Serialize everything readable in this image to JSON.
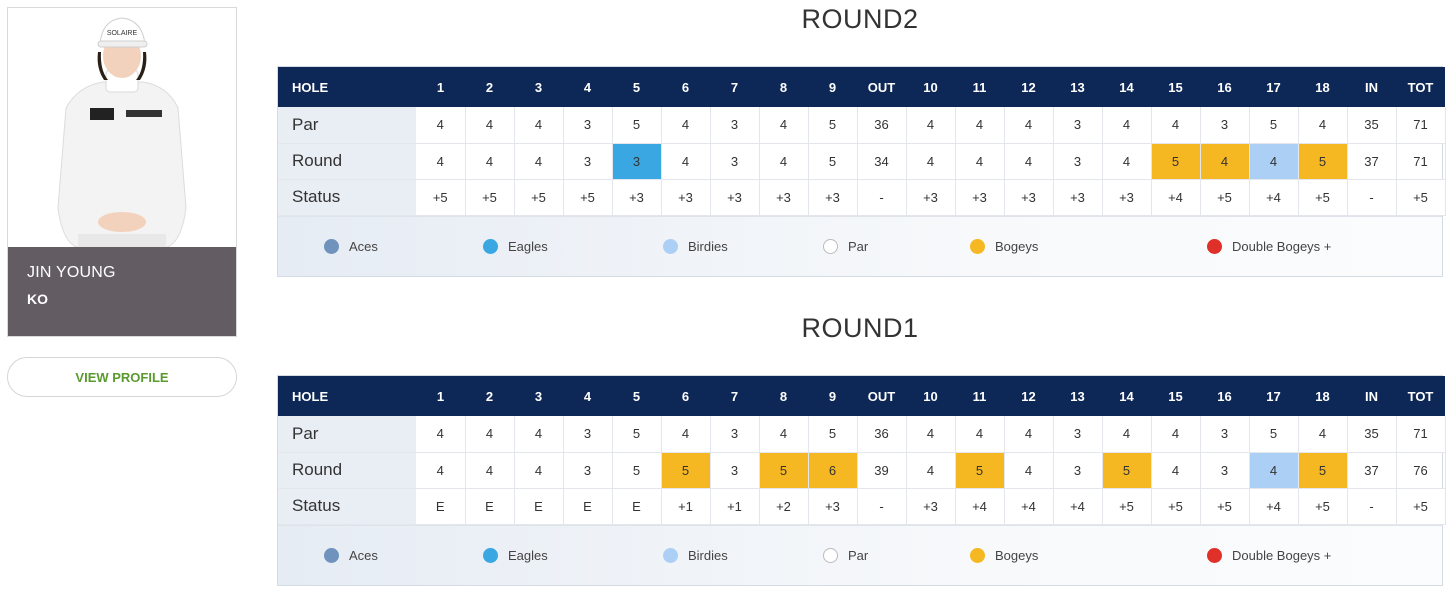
{
  "player": {
    "first_name": "JIN YOUNG",
    "last_name": "KO",
    "photo_caps_text": "SOLAIRE",
    "view_profile_label": "VIEW PROFILE"
  },
  "colors": {
    "header_bg": "#0d2756",
    "aces": "#6f93bd",
    "eagles": "#3aa7e2",
    "birdies": "#acd0f5",
    "par": "#ffffff",
    "bogeys": "#f5b823",
    "double_bogeys": "#e0302a",
    "view_profile_text": "#5a9a2e",
    "name_box": "#635c63"
  },
  "legend": [
    {
      "label": "Aces",
      "color": "#6f93bd"
    },
    {
      "label": "Eagles",
      "color": "#3aa7e2"
    },
    {
      "label": "Birdies",
      "color": "#acd0f5"
    },
    {
      "label": "Par",
      "color": "#ffffff"
    },
    {
      "label": "Bogeys",
      "color": "#f5b823"
    },
    {
      "label": "Double Bogeys +",
      "color": "#e0302a"
    }
  ],
  "table_headers": [
    "HOLE",
    "1",
    "2",
    "3",
    "4",
    "5",
    "6",
    "7",
    "8",
    "9",
    "OUT",
    "10",
    "11",
    "12",
    "13",
    "14",
    "15",
    "16",
    "17",
    "18",
    "IN",
    "TOT"
  ],
  "rounds": [
    {
      "title": "ROUND2",
      "rows": [
        {
          "label": "Par",
          "cells": [
            "4",
            "4",
            "4",
            "3",
            "5",
            "4",
            "3",
            "4",
            "5",
            "36",
            "4",
            "4",
            "4",
            "3",
            "4",
            "4",
            "3",
            "5",
            "4",
            "35",
            "71"
          ]
        },
        {
          "label": "Round",
          "cells": [
            "4",
            "4",
            "4",
            "3",
            "3",
            "4",
            "3",
            "4",
            "5",
            "34",
            "4",
            "4",
            "4",
            "3",
            "4",
            "5",
            "4",
            "4",
            "5",
            "37",
            "71"
          ],
          "marks": [
            "",
            "",
            "",
            "",
            "eagle",
            "",
            "",
            "",
            "",
            "",
            "",
            "",
            "",
            "",
            "",
            "bogey",
            "bogey",
            "birdie",
            "bogey",
            "",
            ""
          ]
        },
        {
          "label": "Status",
          "cells": [
            "+5",
            "+5",
            "+5",
            "+5",
            "+3",
            "+3",
            "+3",
            "+3",
            "+3",
            "-",
            "+3",
            "+3",
            "+3",
            "+3",
            "+3",
            "+4",
            "+5",
            "+4",
            "+5",
            "-",
            "+5"
          ]
        }
      ]
    },
    {
      "title": "ROUND1",
      "rows": [
        {
          "label": "Par",
          "cells": [
            "4",
            "4",
            "4",
            "3",
            "5",
            "4",
            "3",
            "4",
            "5",
            "36",
            "4",
            "4",
            "4",
            "3",
            "4",
            "4",
            "3",
            "5",
            "4",
            "35",
            "71"
          ]
        },
        {
          "label": "Round",
          "cells": [
            "4",
            "4",
            "4",
            "3",
            "5",
            "5",
            "3",
            "5",
            "6",
            "39",
            "4",
            "5",
            "4",
            "3",
            "5",
            "4",
            "3",
            "4",
            "5",
            "37",
            "76"
          ],
          "marks": [
            "",
            "",
            "",
            "",
            "",
            "bogey",
            "",
            "bogey",
            "bogey",
            "",
            "",
            "bogey",
            "",
            "",
            "bogey",
            "",
            "",
            "birdie",
            "bogey",
            "",
            ""
          ]
        },
        {
          "label": "Status",
          "cells": [
            "E",
            "E",
            "E",
            "E",
            "E",
            "+1",
            "+1",
            "+2",
            "+3",
            "-",
            "+3",
            "+4",
            "+4",
            "+4",
            "+5",
            "+5",
            "+5",
            "+4",
            "+5",
            "-",
            "+5"
          ]
        }
      ]
    }
  ]
}
